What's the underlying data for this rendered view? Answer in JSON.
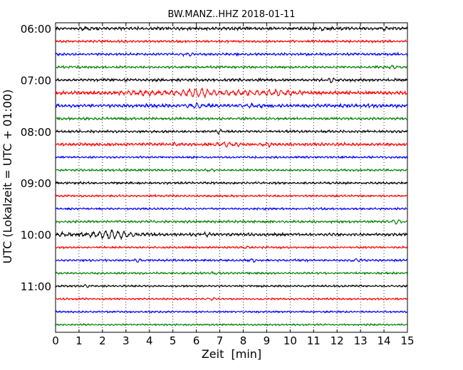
{
  "chart_data": {
    "type": "line",
    "title": "BW.MANZ..HHZ 2018-01-11",
    "xlabel": "Zeit  [min]",
    "ylabel": "UTC (Lokalzeit = UTC + 01:00)",
    "xlim": [
      0,
      15
    ],
    "x_ticks": [
      "0",
      "1",
      "2",
      "3",
      "4",
      "5",
      "6",
      "7",
      "8",
      "9",
      "10",
      "11",
      "12",
      "13",
      "14",
      "15"
    ],
    "y_tick_labels": [
      "06:00",
      "07:00",
      "08:00",
      "09:00",
      "10:00",
      "11:00"
    ],
    "grid": "vertical dotted",
    "trace_colors": [
      "#000000",
      "#ff0000",
      "#0000ff",
      "#008000"
    ],
    "trace_start_times": [
      "06:00",
      "06:15",
      "06:30",
      "06:45",
      "07:00",
      "07:15",
      "07:30",
      "07:45",
      "08:00",
      "08:15",
      "08:30",
      "08:45",
      "09:00",
      "09:15",
      "09:30",
      "09:45",
      "10:00",
      "10:15",
      "10:30",
      "10:45",
      "11:00",
      "11:15",
      "11:30",
      "11:45"
    ],
    "trace_base_amplitude": [
      0.22,
      0.17,
      0.18,
      0.17,
      0.2,
      0.25,
      0.26,
      0.18,
      0.19,
      0.22,
      0.15,
      0.16,
      0.17,
      0.15,
      0.15,
      0.18,
      0.22,
      0.15,
      0.16,
      0.15,
      0.14,
      0.14,
      0.14,
      0.13
    ],
    "events": [
      {
        "trace": 0,
        "t_min": 1.3,
        "amp": 0.35,
        "width_min": 0.2
      },
      {
        "trace": 0,
        "t_min": 11.5,
        "amp": 0.3,
        "width_min": 0.3
      },
      {
        "trace": 0,
        "t_min": 14.0,
        "amp": 0.4,
        "width_min": 0.2
      },
      {
        "trace": 2,
        "t_min": 5.7,
        "amp": 0.3,
        "width_min": 0.3
      },
      {
        "trace": 3,
        "t_min": 14.4,
        "amp": 0.35,
        "width_min": 0.3
      },
      {
        "trace": 4,
        "t_min": 11.8,
        "amp": 0.5,
        "width_min": 0.2
      },
      {
        "trace": 5,
        "t_min": 4.0,
        "amp": 0.4,
        "width_min": 1.4
      },
      {
        "trace": 5,
        "t_min": 6.0,
        "amp": 0.95,
        "width_min": 0.6
      },
      {
        "trace": 5,
        "t_min": 8.0,
        "amp": 0.5,
        "width_min": 1.6
      },
      {
        "trace": 5,
        "t_min": 9.6,
        "amp": 0.4,
        "width_min": 0.7
      },
      {
        "trace": 6,
        "t_min": 6.0,
        "amp": 0.55,
        "width_min": 0.4
      },
      {
        "trace": 6,
        "t_min": 8.3,
        "amp": 0.35,
        "width_min": 0.5
      },
      {
        "trace": 8,
        "t_min": 7.0,
        "amp": 0.4,
        "width_min": 0.2
      },
      {
        "trace": 9,
        "t_min": 5.1,
        "amp": 0.3,
        "width_min": 0.2
      },
      {
        "trace": 9,
        "t_min": 7.3,
        "amp": 0.5,
        "width_min": 0.6
      },
      {
        "trace": 9,
        "t_min": 9.0,
        "amp": 0.35,
        "width_min": 0.4
      },
      {
        "trace": 11,
        "t_min": 6.6,
        "amp": 0.35,
        "width_min": 0.2
      },
      {
        "trace": 15,
        "t_min": 14.5,
        "amp": 0.6,
        "width_min": 0.2
      },
      {
        "trace": 16,
        "t_min": 2.4,
        "amp": 1.05,
        "width_min": 0.9
      },
      {
        "trace": 16,
        "t_min": 0.3,
        "amp": 0.35,
        "width_min": 0.3
      },
      {
        "trace": 16,
        "t_min": 6.4,
        "amp": 0.3,
        "width_min": 0.2
      },
      {
        "trace": 17,
        "t_min": 8.1,
        "amp": 0.3,
        "width_min": 0.2
      },
      {
        "trace": 18,
        "t_min": 3.5,
        "amp": 0.4,
        "width_min": 0.2
      },
      {
        "trace": 18,
        "t_min": 8.4,
        "amp": 0.4,
        "width_min": 0.2
      },
      {
        "trace": 18,
        "t_min": 12.8,
        "amp": 0.35,
        "width_min": 0.2
      },
      {
        "trace": 19,
        "t_min": 6.8,
        "amp": 0.3,
        "width_min": 0.2
      },
      {
        "trace": 20,
        "t_min": 1.3,
        "amp": 0.3,
        "width_min": 0.2
      },
      {
        "trace": 21,
        "t_min": 6.6,
        "amp": 0.3,
        "width_min": 0.2
      }
    ]
  }
}
